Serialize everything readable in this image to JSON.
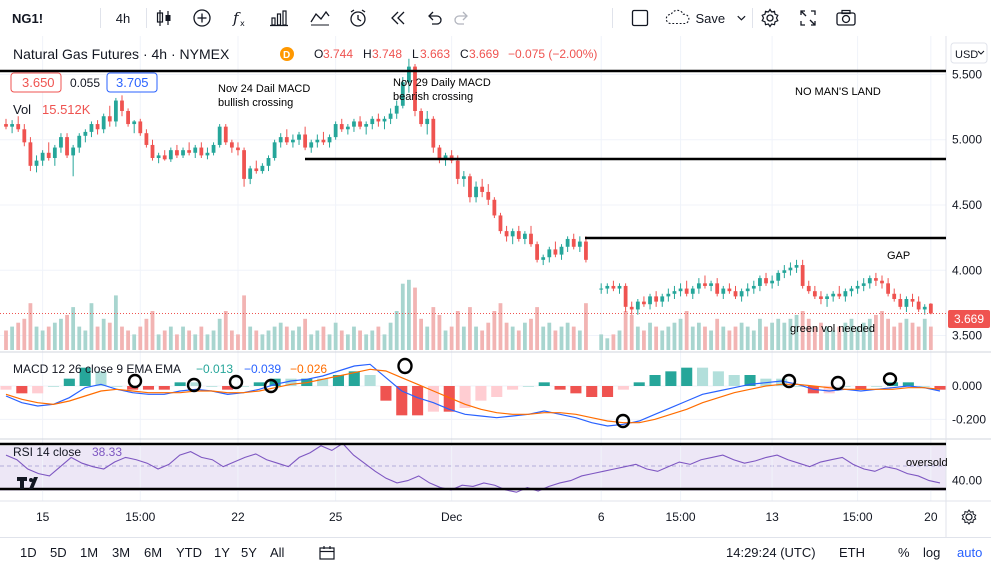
{
  "toolbar": {
    "symbol": "NG1!",
    "interval": "4h",
    "save_label": "Save"
  },
  "legend": {
    "title": "Natural Gas Futures · 4h · NYMEX",
    "delayed_badge": "D",
    "open_label": "O",
    "open": "3.744",
    "high_label": "H",
    "high": "3.748",
    "low_label": "L",
    "low": "3.663",
    "close_label": "C",
    "close": "3.669",
    "change": "−0.075 (−2.00%)",
    "bid": "3.650",
    "spread": "0.055",
    "ask": "3.705",
    "vol_label": "Vol",
    "vol_value": "15.512K"
  },
  "currency": "USD",
  "last_price_label": "3.669",
  "macd_legend": {
    "label": "MACD 12 26 close 9 EMA EMA",
    "v1": "−0.013",
    "v2": "−0.039",
    "v3": "−0.026"
  },
  "rsi_legend": {
    "label": "RSI 14 close",
    "value": "38.33"
  },
  "annotations": {
    "nov24": [
      "Nov 24 Dail MACD",
      "bullish crossing"
    ],
    "nov29": [
      "Nov 29 Daily MACD",
      "bearish crossing"
    ],
    "no_mans_land": "NO MAN'S LAND",
    "gap": "GAP",
    "green_vol": "green vol needed",
    "oversold": "oversold"
  },
  "colors": {
    "up": "#26a69a",
    "down": "#ef5350",
    "vol_up": "#a8d5cf",
    "vol_down": "#f2b4b3",
    "macd_line": "#2962ff",
    "signal_line": "#ff6d00",
    "rsi_line": "#7e57c2",
    "rsi_band": "#ede7f6"
  },
  "bottombar": {
    "ranges": [
      "1D",
      "5D",
      "1M",
      "3M",
      "6M",
      "YTD",
      "1Y",
      "5Y",
      "All"
    ],
    "time": "14:29:24 (UTC)",
    "session": "ETH",
    "pct": "%",
    "log": "log",
    "auto": "auto"
  },
  "chart_data": {
    "type": "candlestick",
    "ylim": [
      3.42,
      5.58
    ],
    "y_ticks": [
      "5.500",
      "5.000",
      "4.500",
      "4.000",
      "3.500"
    ],
    "x_ticks": [
      "15",
      "15:00",
      "22",
      "25",
      "Dec",
      "6",
      "15:00",
      "13",
      "15:00",
      "20"
    ],
    "price_candles": [
      [
        5.12,
        5.16,
        5.08,
        5.1
      ],
      [
        5.1,
        5.15,
        5.05,
        5.12
      ],
      [
        5.12,
        5.18,
        5.06,
        5.08
      ],
      [
        5.08,
        5.12,
        4.95,
        4.98
      ],
      [
        4.98,
        5.02,
        4.76,
        4.8
      ],
      [
        4.8,
        4.88,
        4.75,
        4.84
      ],
      [
        4.84,
        4.92,
        4.8,
        4.9
      ],
      [
        4.9,
        4.98,
        4.84,
        4.86
      ],
      [
        4.86,
        4.96,
        4.8,
        4.94
      ],
      [
        4.94,
        5.05,
        4.9,
        5.02
      ],
      [
        5.02,
        5.05,
        4.86,
        4.88
      ],
      [
        4.88,
        4.96,
        4.72,
        4.94
      ],
      [
        4.94,
        5.05,
        4.9,
        5.03
      ],
      [
        5.03,
        5.08,
        4.98,
        5.06
      ],
      [
        5.06,
        5.14,
        5.02,
        5.12
      ],
      [
        5.12,
        5.15,
        5.04,
        5.08
      ],
      [
        5.08,
        5.2,
        5.05,
        5.18
      ],
      [
        5.18,
        5.26,
        5.1,
        5.14
      ],
      [
        5.14,
        5.32,
        5.1,
        5.3
      ],
      [
        5.3,
        5.34,
        5.18,
        5.22
      ],
      [
        5.22,
        5.24,
        5.1,
        5.12
      ],
      [
        5.12,
        5.15,
        5.05,
        5.14
      ],
      [
        5.14,
        5.16,
        5.03,
        5.05
      ],
      [
        5.05,
        5.08,
        4.94,
        4.96
      ],
      [
        4.96,
        5.0,
        4.84,
        4.86
      ],
      [
        4.86,
        4.9,
        4.82,
        4.88
      ],
      [
        4.88,
        4.92,
        4.84,
        4.85
      ],
      [
        4.85,
        4.94,
        4.83,
        4.92
      ],
      [
        4.92,
        4.96,
        4.86,
        4.88
      ],
      [
        4.88,
        4.94,
        4.86,
        4.92
      ],
      [
        4.92,
        4.98,
        4.88,
        4.9
      ],
      [
        4.9,
        4.96,
        4.86,
        4.94
      ],
      [
        4.94,
        4.98,
        4.86,
        4.88
      ],
      [
        4.88,
        4.94,
        4.85,
        4.9
      ],
      [
        4.9,
        4.98,
        4.88,
        4.96
      ],
      [
        4.96,
        5.12,
        4.94,
        5.1
      ],
      [
        5.1,
        5.12,
        4.96,
        4.98
      ],
      [
        4.98,
        5.0,
        4.9,
        4.94
      ],
      [
        4.94,
        4.98,
        4.88,
        4.92
      ],
      [
        4.92,
        4.94,
        4.64,
        4.7
      ],
      [
        4.7,
        4.8,
        4.66,
        4.78
      ],
      [
        4.78,
        4.84,
        4.74,
        4.76
      ],
      [
        4.76,
        4.82,
        4.74,
        4.8
      ],
      [
        4.8,
        4.88,
        4.76,
        4.86
      ],
      [
        4.86,
        5.0,
        4.84,
        4.98
      ],
      [
        4.98,
        5.05,
        4.94,
        5.02
      ],
      [
        5.02,
        5.08,
        4.96,
        4.98
      ],
      [
        4.98,
        5.04,
        4.94,
        5.0
      ],
      [
        5.0,
        5.06,
        4.96,
        5.04
      ],
      [
        5.04,
        5.1,
        4.92,
        4.94
      ],
      [
        4.94,
        5.0,
        4.9,
        4.98
      ],
      [
        4.98,
        5.04,
        4.94,
        5.0
      ],
      [
        5.0,
        5.06,
        4.96,
        4.98
      ],
      [
        4.98,
        5.04,
        4.94,
        5.02
      ],
      [
        5.02,
        5.14,
        5.0,
        5.12
      ],
      [
        5.12,
        5.16,
        5.06,
        5.08
      ],
      [
        5.08,
        5.12,
        5.04,
        5.1
      ],
      [
        5.1,
        5.16,
        5.06,
        5.14
      ],
      [
        5.14,
        5.18,
        5.08,
        5.1
      ],
      [
        5.1,
        5.14,
        5.04,
        5.12
      ],
      [
        5.12,
        5.18,
        5.08,
        5.16
      ],
      [
        5.16,
        5.2,
        5.1,
        5.14
      ],
      [
        5.14,
        5.18,
        5.08,
        5.16
      ],
      [
        5.16,
        5.24,
        5.12,
        5.2
      ],
      [
        5.2,
        5.3,
        5.16,
        5.26
      ],
      [
        5.26,
        5.48,
        5.24,
        5.44
      ],
      [
        5.44,
        5.62,
        5.36,
        5.56
      ],
      [
        5.56,
        5.58,
        5.18,
        5.22
      ],
      [
        5.22,
        5.24,
        5.1,
        5.12
      ],
      [
        5.12,
        5.22,
        5.04,
        5.16
      ],
      [
        5.16,
        5.18,
        4.9,
        4.94
      ],
      [
        4.94,
        4.96,
        4.82,
        4.85
      ],
      [
        4.85,
        4.9,
        4.8,
        4.88
      ],
      [
        4.88,
        4.92,
        4.82,
        4.84
      ],
      [
        4.84,
        4.88,
        4.66,
        4.7
      ],
      [
        4.7,
        4.76,
        4.64,
        4.72
      ],
      [
        4.72,
        4.74,
        4.52,
        4.56
      ],
      [
        4.56,
        4.68,
        4.52,
        4.64
      ],
      [
        4.64,
        4.7,
        4.56,
        4.6
      ],
      [
        4.6,
        4.66,
        4.5,
        4.54
      ],
      [
        4.54,
        4.56,
        4.4,
        4.42
      ],
      [
        4.42,
        4.44,
        4.28,
        4.3
      ],
      [
        4.3,
        4.34,
        4.22,
        4.26
      ],
      [
        4.26,
        4.32,
        4.2,
        4.3
      ],
      [
        4.3,
        4.34,
        4.22,
        4.24
      ],
      [
        4.24,
        4.3,
        4.2,
        4.28
      ],
      [
        4.28,
        4.34,
        4.18,
        4.2
      ],
      [
        4.2,
        4.22,
        4.06,
        4.08
      ],
      [
        4.08,
        4.12,
        4.04,
        4.1
      ],
      [
        4.1,
        4.18,
        4.06,
        4.16
      ],
      [
        4.16,
        4.22,
        4.1,
        4.12
      ],
      [
        4.12,
        4.2,
        4.08,
        4.18
      ],
      [
        4.18,
        4.26,
        4.14,
        4.24
      ],
      [
        4.24,
        4.28,
        4.16,
        4.18
      ],
      [
        4.18,
        4.26,
        4.14,
        4.22
      ],
      [
        4.22,
        4.26,
        4.06,
        4.08
      ],
      [
        3.86,
        3.9,
        3.82,
        3.86
      ],
      [
        3.86,
        3.9,
        3.82,
        3.88
      ],
      [
        3.88,
        3.92,
        3.84,
        3.86
      ],
      [
        3.86,
        3.9,
        3.82,
        3.88
      ],
      [
        3.88,
        3.9,
        3.68,
        3.72
      ],
      [
        3.72,
        3.76,
        3.66,
        3.7
      ],
      [
        3.7,
        3.78,
        3.66,
        3.76
      ],
      [
        3.76,
        3.8,
        3.72,
        3.74
      ],
      [
        3.74,
        3.82,
        3.7,
        3.8
      ],
      [
        3.8,
        3.84,
        3.72,
        3.76
      ],
      [
        3.76,
        3.82,
        3.72,
        3.8
      ],
      [
        3.8,
        3.86,
        3.76,
        3.82
      ],
      [
        3.82,
        3.88,
        3.78,
        3.84
      ],
      [
        3.84,
        3.9,
        3.8,
        3.86
      ],
      [
        3.86,
        3.92,
        3.8,
        3.82
      ],
      [
        3.82,
        3.88,
        3.78,
        3.86
      ],
      [
        3.86,
        3.94,
        3.82,
        3.9
      ],
      [
        3.9,
        3.96,
        3.86,
        3.88
      ],
      [
        3.88,
        3.92,
        3.84,
        3.9
      ],
      [
        3.9,
        3.94,
        3.8,
        3.82
      ],
      [
        3.82,
        3.88,
        3.78,
        3.86
      ],
      [
        3.86,
        3.9,
        3.82,
        3.84
      ],
      [
        3.84,
        3.88,
        3.78,
        3.8
      ],
      [
        3.8,
        3.86,
        3.76,
        3.84
      ],
      [
        3.84,
        3.9,
        3.8,
        3.86
      ],
      [
        3.86,
        3.92,
        3.82,
        3.88
      ],
      [
        3.88,
        3.96,
        3.84,
        3.94
      ],
      [
        3.94,
        3.98,
        3.88,
        3.9
      ],
      [
        3.9,
        3.96,
        3.86,
        3.92
      ],
      [
        3.92,
        4.0,
        3.88,
        3.98
      ],
      [
        3.98,
        4.04,
        3.94,
        4.0
      ],
      [
        4.0,
        4.06,
        3.96,
        4.02
      ],
      [
        4.02,
        4.08,
        3.98,
        4.04
      ],
      [
        4.04,
        4.08,
        3.86,
        3.88
      ],
      [
        3.88,
        3.92,
        3.82,
        3.84
      ],
      [
        3.84,
        3.88,
        3.78,
        3.8
      ],
      [
        3.8,
        3.84,
        3.74,
        3.78
      ],
      [
        3.78,
        3.82,
        3.72,
        3.8
      ],
      [
        3.8,
        3.84,
        3.76,
        3.82
      ],
      [
        3.82,
        3.88,
        3.78,
        3.8
      ],
      [
        3.8,
        3.86,
        3.76,
        3.84
      ],
      [
        3.84,
        3.88,
        3.8,
        3.86
      ],
      [
        3.86,
        3.92,
        3.82,
        3.88
      ],
      [
        3.88,
        3.94,
        3.84,
        3.9
      ],
      [
        3.9,
        3.96,
        3.86,
        3.94
      ],
      [
        3.94,
        3.98,
        3.88,
        3.92
      ],
      [
        3.92,
        3.96,
        3.86,
        3.9
      ],
      [
        3.9,
        3.94,
        3.8,
        3.82
      ],
      [
        3.82,
        3.86,
        3.76,
        3.78
      ],
      [
        3.78,
        3.82,
        3.7,
        3.72
      ],
      [
        3.72,
        3.8,
        3.68,
        3.78
      ],
      [
        3.78,
        3.82,
        3.72,
        3.76
      ],
      [
        3.76,
        3.8,
        3.68,
        3.7
      ],
      [
        3.7,
        3.74,
        3.66,
        3.72
      ],
      [
        3.744,
        3.748,
        3.663,
        3.669
      ]
    ],
    "volume": [
      0.25,
      0.3,
      0.35,
      0.4,
      0.6,
      0.3,
      0.25,
      0.3,
      0.35,
      0.4,
      0.45,
      0.55,
      0.3,
      0.25,
      0.6,
      0.3,
      0.4,
      0.35,
      0.7,
      0.3,
      0.25,
      0.2,
      0.3,
      0.4,
      0.5,
      0.2,
      0.25,
      0.3,
      0.2,
      0.3,
      0.25,
      0.2,
      0.3,
      0.2,
      0.25,
      0.4,
      0.5,
      0.25,
      0.2,
      0.7,
      0.3,
      0.25,
      0.2,
      0.25,
      0.3,
      0.35,
      0.3,
      0.25,
      0.3,
      0.4,
      0.2,
      0.25,
      0.3,
      0.2,
      0.35,
      0.25,
      0.2,
      0.3,
      0.25,
      0.2,
      0.25,
      0.3,
      0.2,
      0.35,
      0.5,
      0.85,
      0.9,
      0.8,
      0.4,
      0.3,
      0.55,
      0.45,
      0.25,
      0.3,
      0.5,
      0.3,
      0.55,
      0.3,
      0.25,
      0.35,
      0.5,
      0.6,
      0.35,
      0.3,
      0.25,
      0.35,
      0.4,
      0.55,
      0.3,
      0.35,
      0.25,
      0.3,
      0.35,
      0.3,
      0.25,
      0.6,
      0.2,
      0.15,
      0.2,
      0.25,
      0.5,
      0.45,
      0.3,
      0.25,
      0.35,
      0.3,
      0.25,
      0.3,
      0.35,
      0.4,
      0.5,
      0.3,
      0.35,
      0.3,
      0.25,
      0.4,
      0.3,
      0.25,
      0.3,
      0.35,
      0.3,
      0.25,
      0.4,
      0.3,
      0.35,
      0.4,
      0.35,
      0.4,
      0.45,
      0.5,
      0.4,
      0.3,
      0.35,
      0.3,
      0.25,
      0.3,
      0.35,
      0.4,
      0.3,
      0.35,
      0.4,
      0.45,
      0.5,
      0.4,
      0.3,
      0.35,
      0.4,
      0.35,
      0.3,
      0.4,
      0.3
    ],
    "macd_ylim": [
      -0.3,
      0.18
    ],
    "macd_ticks": [
      "0.000",
      "-0.200"
    ],
    "macd_line": [
      -0.06,
      -0.1,
      -0.12,
      -0.11,
      -0.07,
      -0.01,
      0.01,
      -0.02,
      -0.04,
      -0.05,
      -0.05,
      -0.03,
      -0.02,
      -0.03,
      -0.05,
      -0.04,
      -0.02,
      0.01,
      0.03,
      0.04,
      0.06,
      0.09,
      0.12,
      0.13,
      0.05,
      -0.03,
      -0.07,
      -0.1,
      -0.14,
      -0.17,
      -0.18,
      -0.19,
      -0.18,
      -0.17,
      -0.15,
      -0.17,
      -0.19,
      -0.22,
      -0.24,
      -0.23,
      -0.21,
      -0.17,
      -0.13,
      -0.09,
      -0.05,
      -0.03,
      -0.01,
      0.01,
      0.02,
      0.03,
      0.01,
      -0.02,
      -0.03,
      -0.02,
      -0.03,
      -0.02,
      -0.01,
      0.0,
      -0.01,
      -0.03
    ],
    "signal_line": [
      -0.05,
      -0.08,
      -0.1,
      -0.11,
      -0.09,
      -0.06,
      -0.03,
      -0.02,
      -0.03,
      -0.04,
      -0.04,
      -0.04,
      -0.03,
      -0.03,
      -0.04,
      -0.04,
      -0.03,
      -0.01,
      0.01,
      0.02,
      0.04,
      0.06,
      0.08,
      0.1,
      0.09,
      0.05,
      0.01,
      -0.03,
      -0.07,
      -0.11,
      -0.14,
      -0.16,
      -0.17,
      -0.17,
      -0.16,
      -0.16,
      -0.17,
      -0.19,
      -0.21,
      -0.22,
      -0.22,
      -0.2,
      -0.17,
      -0.14,
      -0.1,
      -0.07,
      -0.04,
      -0.02,
      0.0,
      0.01,
      0.01,
      0.0,
      -0.01,
      -0.02,
      -0.02,
      -0.02,
      -0.02,
      -0.01,
      -0.01,
      -0.02
    ],
    "rsi_ylim": [
      25,
      75
    ],
    "rsi_ticks": [
      "40.00"
    ],
    "rsi_line": [
      62,
      58,
      50,
      46,
      44,
      52,
      60,
      55,
      52,
      50,
      56,
      60,
      58,
      55,
      50,
      54,
      62,
      65,
      60,
      58,
      52,
      56,
      60,
      63,
      58,
      55,
      52,
      60,
      64,
      70,
      66,
      72,
      62,
      55,
      48,
      42,
      38,
      40,
      44,
      38,
      34,
      32,
      36,
      35,
      38,
      36,
      32,
      30,
      34,
      31,
      35,
      38,
      40,
      44,
      46,
      48,
      50,
      52,
      54,
      50,
      48,
      52,
      56,
      54,
      58,
      60,
      62,
      58,
      55,
      57,
      60,
      62,
      58,
      55,
      52,
      56,
      58,
      60,
      54,
      50,
      48,
      52,
      50,
      46,
      44,
      40,
      38
    ]
  }
}
